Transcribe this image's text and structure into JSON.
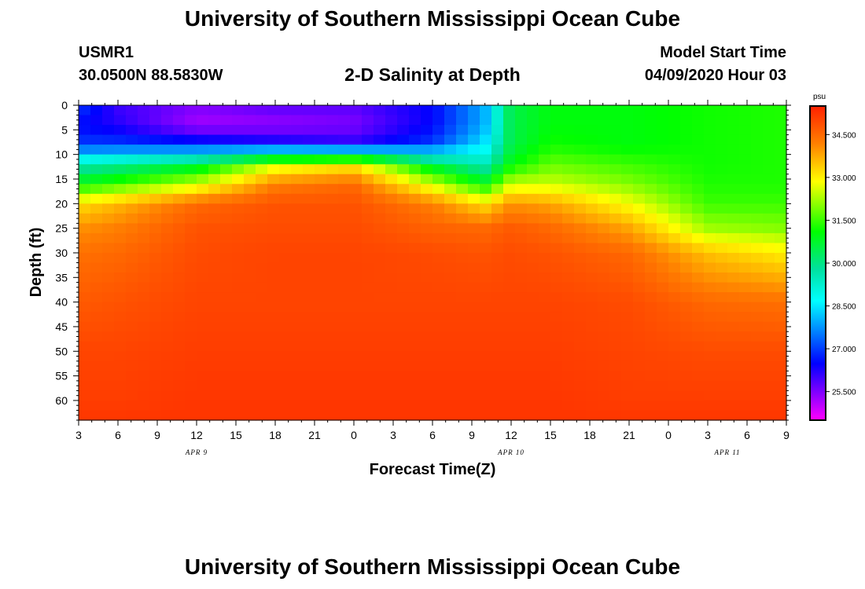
{
  "header": {
    "main_title": "University of Southern Mississippi Ocean Cube",
    "station": "USMR1",
    "coordinates": "30.0500N 88.5830W",
    "plot_title": "2-D Salinity at Depth",
    "start_label": "Model Start Time",
    "start_time": "04/09/2020 Hour 03"
  },
  "footer": {
    "title": "University of Southern Mississippi Ocean Cube"
  },
  "chart_data": {
    "type": "heatmap",
    "title": "2-D Salinity at Depth",
    "xlabel": "Forecast Time(Z)",
    "ylabel": "Depth (ft)",
    "x_tick_labels": [
      "3",
      "6",
      "9",
      "12",
      "15",
      "18",
      "21",
      "0",
      "3",
      "6",
      "9",
      "12",
      "15",
      "18",
      "21",
      "0",
      "3",
      "6",
      "9"
    ],
    "x_range_hours": [
      0,
      54
    ],
    "date_labels": [
      {
        "label": "APR 9",
        "hour": 9
      },
      {
        "label": "APR 10",
        "hour": 33
      },
      {
        "label": "APR 11",
        "hour": 49.5
      }
    ],
    "y_tick_labels": [
      "0",
      "5",
      "10",
      "15",
      "20",
      "25",
      "30",
      "35",
      "40",
      "45",
      "50",
      "55",
      "60"
    ],
    "y_range_ft": [
      0,
      64
    ],
    "colorbar": {
      "unit": "psu",
      "range": [
        24.5,
        35.5
      ],
      "tick_labels": [
        "34.500",
        "33.000",
        "31.500",
        "30.000",
        "28.500",
        "27.000",
        "25.500"
      ]
    },
    "depth_profile_ft": [
      0,
      4,
      8,
      12,
      16,
      20,
      25,
      30,
      40,
      50,
      60,
      64
    ],
    "salinity_columns": [
      {
        "hour": 0,
        "values": [
          27.0,
          26.5,
          27.0,
          29.5,
          31.0,
          33.2,
          34.0,
          34.4,
          34.7,
          35.0,
          35.1,
          35.2
        ]
      },
      {
        "hour": 3,
        "values": [
          26.0,
          26.2,
          27.0,
          29.8,
          31.5,
          33.6,
          34.2,
          34.5,
          34.8,
          35.0,
          35.1,
          35.2
        ]
      },
      {
        "hour": 9,
        "values": [
          25.5,
          25.2,
          26.8,
          30.5,
          32.5,
          34.5,
          34.8,
          34.9,
          35.0,
          35.1,
          35.2,
          35.2
        ]
      },
      {
        "hour": 15,
        "values": [
          25.8,
          25.3,
          26.5,
          32.5,
          34.2,
          34.8,
          34.9,
          35.0,
          35.0,
          35.1,
          35.2,
          35.2
        ]
      },
      {
        "hour": 21,
        "values": [
          25.8,
          25.5,
          26.2,
          33.0,
          34.5,
          34.8,
          34.9,
          35.0,
          35.0,
          35.1,
          35.2,
          35.2
        ]
      },
      {
        "hour": 27,
        "values": [
          26.5,
          26.5,
          27.0,
          30.5,
          32.5,
          34.2,
          34.6,
          34.9,
          35.0,
          35.1,
          35.2,
          35.2
        ]
      },
      {
        "hour": 31,
        "values": [
          28.0,
          28.0,
          28.5,
          29.5,
          31.0,
          33.2,
          34.5,
          34.8,
          35.0,
          35.1,
          35.2,
          35.2
        ]
      },
      {
        "hour": 33,
        "values": [
          30.5,
          30.5,
          30.5,
          31.0,
          32.5,
          34.0,
          34.7,
          34.9,
          35.0,
          35.1,
          35.2,
          35.2
        ]
      },
      {
        "hour": 36,
        "values": [
          31.0,
          31.0,
          31.2,
          31.8,
          32.5,
          33.8,
          34.5,
          34.8,
          35.0,
          35.1,
          35.2,
          35.2
        ]
      },
      {
        "hour": 42,
        "values": [
          31.0,
          31.0,
          31.0,
          31.5,
          32.0,
          32.8,
          33.8,
          34.5,
          34.9,
          35.0,
          35.1,
          35.2
        ]
      },
      {
        "hour": 48,
        "values": [
          31.2,
          31.2,
          31.2,
          31.2,
          31.3,
          31.5,
          32.2,
          33.5,
          34.5,
          34.9,
          35.1,
          35.2
        ]
      },
      {
        "hour": 54,
        "values": [
          31.3,
          31.3,
          31.3,
          31.3,
          31.3,
          31.5,
          32.0,
          33.0,
          34.4,
          34.9,
          35.1,
          35.2
        ]
      }
    ]
  }
}
